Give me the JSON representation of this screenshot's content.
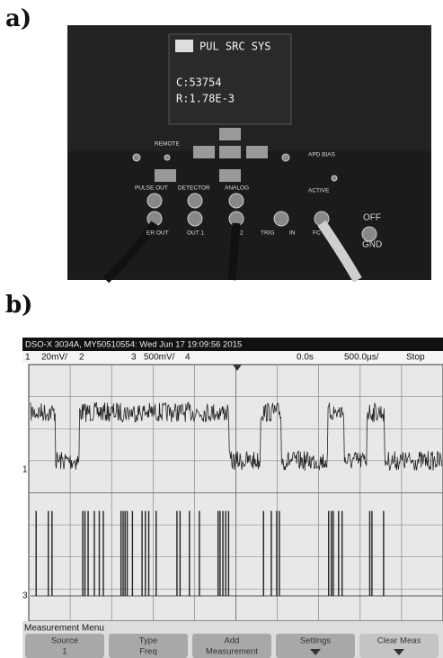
{
  "panel_a": {
    "label": "a)",
    "display": {
      "line1": "PUL SRC SYS",
      "line2": "C:53754",
      "line3": "R:1.78E-3"
    },
    "labels": [
      "REMOTE",
      "APD BIAS",
      "ACTIVE",
      "PULSE OUT",
      "DETECTOR",
      "ANALOG",
      "ER OUT",
      "OUT 1",
      "2",
      "TRIG",
      "IN",
      "FC",
      "OFF",
      "GND"
    ]
  },
  "panel_b": {
    "label": "b)",
    "header": "DSO-X 3034A, MY50510554: Wed Jun 17 19:09:56 2015",
    "status": [
      "1",
      "20mV/",
      "2",
      "3",
      "500mV/",
      "4",
      "0.0s",
      "500.0µs/",
      "Stop"
    ],
    "markers": [
      "1",
      "3"
    ],
    "menu_title": "Measurement Menu",
    "softkeys": [
      {
        "top": "Source",
        "bottom": "1"
      },
      {
        "top": "Type",
        "bottom": "Freq"
      },
      {
        "top": "Add",
        "bottom": "Measurement"
      },
      {
        "top": "Settings"
      },
      {
        "top": "Clear Meas"
      }
    ]
  }
}
